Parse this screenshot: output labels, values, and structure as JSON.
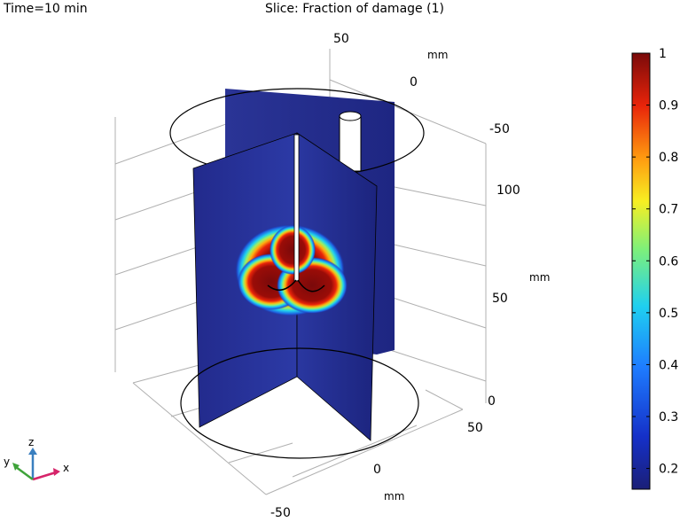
{
  "header": {
    "time_label": "Time=10 min",
    "title": "Slice: Fraction of damage (1)"
  },
  "axes": {
    "x_ticks": [
      "-50",
      "0",
      "50"
    ],
    "x_unit": "mm",
    "y_ticks": [
      "50",
      "0",
      "-50"
    ],
    "y_unit": "mm",
    "z_ticks": [
      "0",
      "50",
      "100"
    ],
    "z_unit": "mm",
    "triad": {
      "x": "x",
      "y": "y",
      "z": "z"
    }
  },
  "colorbar": {
    "ticks": [
      "1",
      "0.9",
      "0.8",
      "0.7",
      "0.6",
      "0.5",
      "0.4",
      "0.3",
      "0.2"
    ],
    "min": 0.16,
    "max": 1.0,
    "colormap": [
      "#1b1f77",
      "#1530c8",
      "#1e7cff",
      "#1fd0f0",
      "#7ef07a",
      "#f7ef22",
      "#ff9a10",
      "#e8240a",
      "#7a0a0a"
    ]
  },
  "chart_data": {
    "type": "heatmap",
    "title": "Slice: Fraction of damage (1)",
    "subtitle": "Time=10 min",
    "xlabel": "mm",
    "ylabel": "mm",
    "zlabel": "mm",
    "x_ticks": [
      -50,
      0,
      50
    ],
    "y_ticks": [
      -50,
      0,
      50
    ],
    "z_ticks": [
      0,
      50,
      100
    ],
    "colorbar_range": [
      0.16,
      1.0
    ],
    "colorbar_ticks": [
      0.2,
      0.3,
      0.4,
      0.5,
      0.6,
      0.7,
      0.8,
      0.9,
      1.0
    ],
    "background_value": 0.17,
    "peak_value": 1.0,
    "grid": true
  }
}
